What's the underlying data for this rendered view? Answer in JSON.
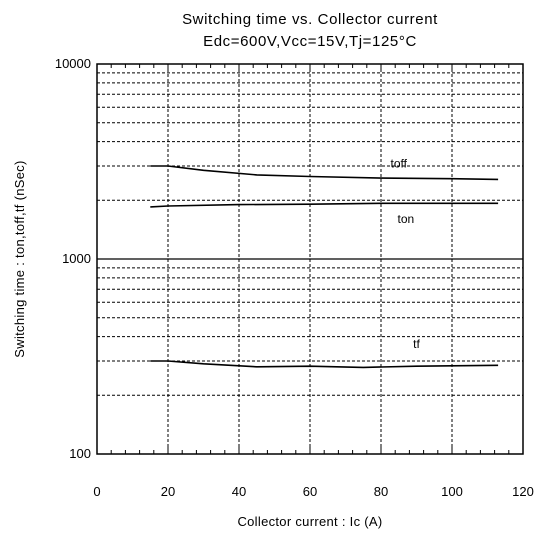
{
  "chart_data": {
    "type": "line",
    "title": "Switching time vs. Collector current",
    "subtitle": "Edc=600V,Vcc=15V,Tj=125°C",
    "xlabel": "Collector current : Ic (A)",
    "ylabel": "Switching time : ton,toff,tf (nSec)",
    "xlim": [
      0,
      120
    ],
    "ylim": [
      100,
      10000
    ],
    "yscale": "log",
    "xticks": [
      "0",
      "20",
      "40",
      "60",
      "80",
      "100",
      "120"
    ],
    "yticks": [
      "100",
      "1000",
      "10000"
    ],
    "grid": true,
    "series": [
      {
        "name": "toff",
        "x": [
          15,
          20,
          30,
          45,
          60,
          80,
          100,
          113
        ],
        "y": [
          3000,
          3000,
          2850,
          2700,
          2650,
          2600,
          2580,
          2560
        ]
      },
      {
        "name": "ton",
        "x": [
          15,
          20,
          40,
          60,
          80,
          100,
          113
        ],
        "y": [
          1850,
          1870,
          1900,
          1910,
          1930,
          1930,
          1930
        ]
      },
      {
        "name": "tf",
        "x": [
          15,
          20,
          30,
          45,
          60,
          75,
          90,
          113
        ],
        "y": [
          300,
          300,
          290,
          280,
          282,
          278,
          282,
          285
        ]
      }
    ]
  }
}
